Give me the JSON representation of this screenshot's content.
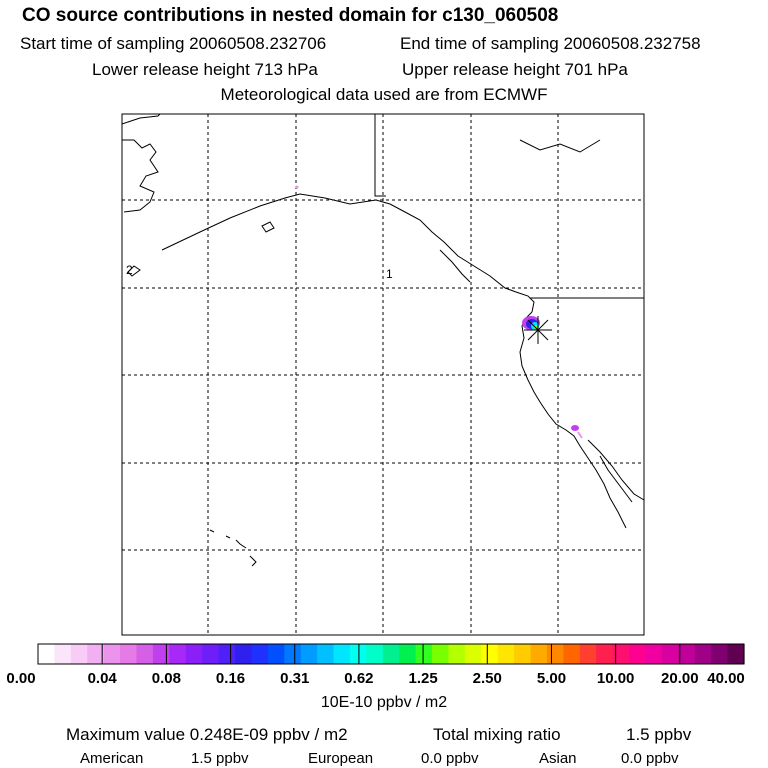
{
  "header": {
    "title": "CO  source contributions in nested domain for c130_060508",
    "start_label": "Start time of sampling 20060508.232706",
    "end_label": "End time of sampling 20060508.232758",
    "lower_label": "Lower release height  713 hPa",
    "upper_label": "Upper release height  701 hPa",
    "met_label": "Meteorological data used are from ECMWF"
  },
  "map": {
    "region_label_1": "1",
    "region_label_2": "2"
  },
  "colorbar": {
    "colors": [
      "#ffffff",
      "#fbe5fb",
      "#f7ccf7",
      "#f1b0f1",
      "#ec94ec",
      "#e67ae6",
      "#d65fe8",
      "#c040f0",
      "#a828f8",
      "#8c1ef8",
      "#6e1ef8",
      "#5020f8",
      "#3020f0",
      "#2030ff",
      "#0050ff",
      "#0078ff",
      "#009cff",
      "#00c0ff",
      "#00e6ff",
      "#00ffee",
      "#00ffc8",
      "#00f090",
      "#00f050",
      "#30ff20",
      "#78ff00",
      "#b4ff00",
      "#dcff00",
      "#ffff00",
      "#ffe600",
      "#ffcc00",
      "#ffaa00",
      "#ff8800",
      "#ff6600",
      "#ff4030",
      "#ff2050",
      "#ff1070",
      "#ff0090",
      "#f000a0",
      "#d800a0",
      "#c00098",
      "#a00088",
      "#800070",
      "#600050"
    ],
    "tick_labels": [
      "0.00",
      "0.04",
      "0.08",
      "0.16",
      "0.31",
      "0.62",
      "1.25",
      "2.50",
      "5.00",
      "10.00",
      "20.00",
      "40.00"
    ],
    "units": "10E-10 ppbv / m2"
  },
  "stats": {
    "max_label": "Maximum value  0.248E-09 ppbv / m2",
    "total_label": "Total mixing ratio",
    "total_value": "1.5 ppbv",
    "american_label": "American",
    "american_value": "1.5 ppbv",
    "european_label": "European",
    "european_value": "0.0 ppbv",
    "asian_label": "Asian",
    "asian_value": "0.0 ppbv"
  }
}
